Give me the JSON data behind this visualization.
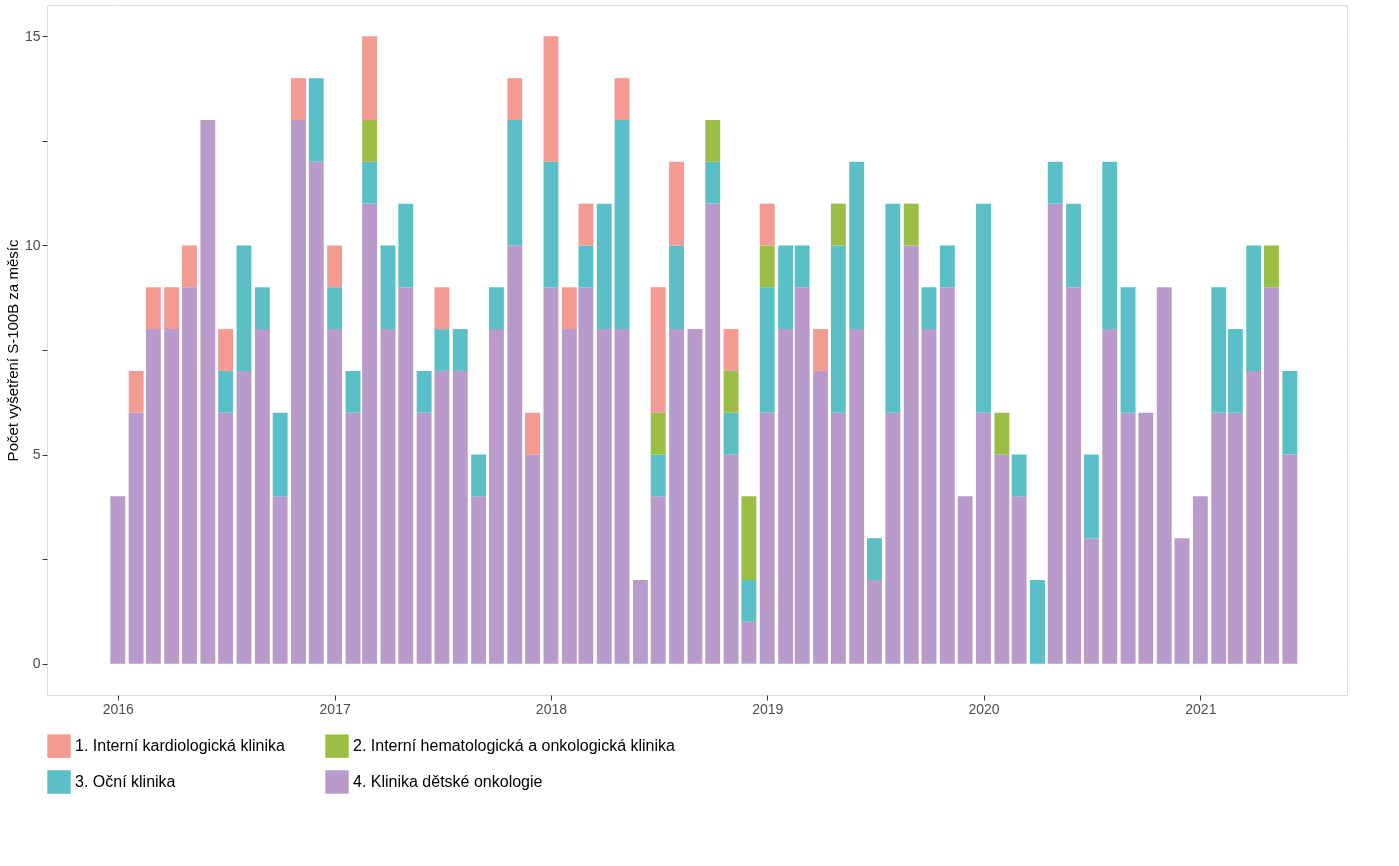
{
  "chart_data": {
    "type": "bar",
    "stacked": true,
    "ylabel": "Počet vyšetření S-100B za měsíc",
    "x": [
      "2016-01",
      "2016-02",
      "2016-03",
      "2016-04",
      "2016-05",
      "2016-06",
      "2016-07",
      "2016-08",
      "2016-09",
      "2016-10",
      "2016-11",
      "2016-12",
      "2017-01",
      "2017-02",
      "2017-03",
      "2017-04",
      "2017-05",
      "2017-06",
      "2017-07",
      "2017-08",
      "2017-09",
      "2017-10",
      "2017-11",
      "2017-12",
      "2018-01",
      "2018-02",
      "2018-03",
      "2018-04",
      "2018-05",
      "2018-06",
      "2018-07",
      "2018-08",
      "2018-09",
      "2018-10",
      "2018-11",
      "2018-12",
      "2019-01",
      "2019-02",
      "2019-03",
      "2019-04",
      "2019-05",
      "2019-06",
      "2019-07",
      "2019-08",
      "2019-09",
      "2019-10",
      "2019-11",
      "2019-12",
      "2020-01",
      "2020-02",
      "2020-03",
      "2020-04",
      "2020-05",
      "2020-06",
      "2020-07",
      "2020-08",
      "2020-09",
      "2020-10",
      "2020-11",
      "2020-12",
      "2021-01",
      "2021-02",
      "2021-03",
      "2021-04",
      "2021-05",
      "2021-06"
    ],
    "series": [
      {
        "name": "4. Klinika dětské onkologie",
        "color": "#b99bcb",
        "values": [
          4,
          6,
          8,
          8,
          9,
          13,
          6,
          7,
          8,
          4,
          13,
          12,
          8,
          6,
          11,
          8,
          9,
          6,
          7,
          7,
          4,
          8,
          10,
          5,
          9,
          8,
          9,
          8,
          8,
          2,
          4,
          8,
          8,
          11,
          5,
          1,
          6,
          8,
          9,
          7,
          6,
          8,
          2,
          6,
          10,
          8,
          9,
          4,
          6,
          5,
          4,
          null,
          11,
          9,
          3,
          8,
          6,
          6,
          9,
          3,
          4,
          6,
          6,
          7,
          9,
          5
        ]
      },
      {
        "name": "3. Oční klinika",
        "color": "#5bbfc7",
        "values": [
          null,
          null,
          null,
          null,
          null,
          null,
          1,
          3,
          1,
          2,
          null,
          2,
          1,
          1,
          1,
          2,
          2,
          1,
          1,
          1,
          1,
          1,
          3,
          null,
          3,
          null,
          1,
          3,
          5,
          null,
          1,
          2,
          null,
          1,
          1,
          1,
          3,
          2,
          1,
          null,
          4,
          4,
          1,
          5,
          null,
          1,
          1,
          null,
          5,
          null,
          1,
          2,
          1,
          2,
          2,
          4,
          3,
          null,
          null,
          null,
          null,
          3,
          2,
          3,
          null,
          2
        ]
      },
      {
        "name": "2. Interní hematologická a onkologická klinika",
        "color": "#9bbf45",
        "values": [
          null,
          null,
          null,
          null,
          null,
          null,
          null,
          null,
          null,
          null,
          null,
          null,
          null,
          null,
          1,
          null,
          null,
          null,
          null,
          null,
          null,
          null,
          null,
          null,
          null,
          null,
          null,
          null,
          null,
          null,
          1,
          null,
          null,
          1,
          1,
          2,
          1,
          null,
          null,
          null,
          1,
          null,
          null,
          null,
          1,
          null,
          null,
          null,
          null,
          1,
          null,
          null,
          null,
          null,
          null,
          null,
          null,
          null,
          null,
          null,
          null,
          null,
          null,
          null,
          1,
          null
        ]
      },
      {
        "name": "1. Interní kardiologická klinika",
        "color": "#f39a93",
        "values": [
          null,
          1,
          1,
          1,
          1,
          null,
          1,
          null,
          null,
          null,
          1,
          null,
          1,
          null,
          2,
          null,
          null,
          null,
          1,
          null,
          null,
          null,
          1,
          1,
          3,
          1,
          1,
          null,
          1,
          null,
          3,
          2,
          null,
          null,
          1,
          null,
          1,
          null,
          null,
          1,
          null,
          null,
          null,
          null,
          null,
          null,
          null,
          null,
          null,
          null,
          null,
          null,
          null,
          null,
          null,
          null,
          null,
          null,
          null,
          null,
          null,
          null,
          null,
          null,
          null,
          null
        ]
      }
    ],
    "xlim": [
      "2015-09-12",
      "2021-08-28"
    ],
    "xticks": [
      "2016",
      "2017",
      "2018",
      "2019",
      "2020",
      "2021"
    ],
    "ylim": [
      -0.75,
      15.75
    ],
    "yticks": [
      0,
      {
        "value": 2.5,
        "label": null
      },
      5,
      {
        "value": 7.5,
        "label": null
      },
      10,
      {
        "value": 12.5,
        "label": null
      },
      15
    ],
    "grid": true,
    "legend": "bottom"
  }
}
